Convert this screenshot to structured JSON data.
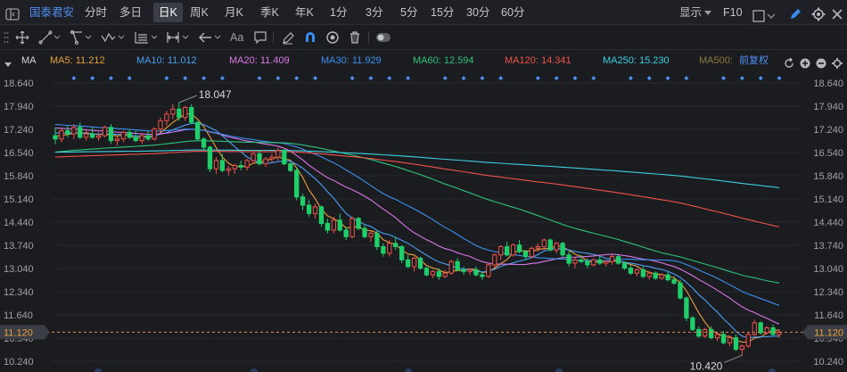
{
  "header": {
    "stock_name": "国泰君安",
    "periods": [
      "分时",
      "多日",
      "日K",
      "周K",
      "月K",
      "季K",
      "年K",
      "1分",
      "3分",
      "5分",
      "15分",
      "30分",
      "60分"
    ],
    "active_period": "日K",
    "display_label": "显示",
    "f10_label": "F10"
  },
  "toolbar": {
    "text_tool_label": "Aa"
  },
  "legend": {
    "indicator": "MA",
    "items": [
      {
        "label": "MA5: 11.212",
        "color": "#e9a13c"
      },
      {
        "label": "MA10: 11.012",
        "color": "#4a9ff5"
      },
      {
        "label": "MA20: 11.409",
        "color": "#d977e6"
      },
      {
        "label": "MA30: 11.929",
        "color": "#3a8ff0"
      },
      {
        "label": "MA60: 12.594",
        "color": "#2fc27a"
      },
      {
        "label": "MA120: 14.341",
        "color": "#f0524a"
      },
      {
        "label": "MA250: 15.230",
        "color": "#3ccfe0"
      },
      {
        "label": "MA500:",
        "color": "#8d7a3e"
      }
    ],
    "adjust_label": "前复权"
  },
  "chart_data": {
    "type": "candlestick",
    "ylim": [
      10.24,
      18.64
    ],
    "y_ticks": [
      "18.640",
      "17.940",
      "17.240",
      "16.540",
      "15.840",
      "15.140",
      "14.440",
      "13.740",
      "13.040",
      "12.340",
      "11.640",
      "10.940",
      "10.240"
    ],
    "current_price": "11.120",
    "max_label": "18.047",
    "min_label": "10.420",
    "colors": {
      "up": "#f0524a",
      "down": "#1fcf6a"
    },
    "ohlc": [
      [
        17.05,
        17.3,
        16.8,
        16.95
      ],
      [
        16.95,
        17.25,
        16.85,
        17.2
      ],
      [
        17.2,
        17.35,
        17.0,
        17.1
      ],
      [
        17.1,
        17.4,
        16.95,
        17.3
      ],
      [
        17.3,
        17.45,
        16.95,
        17.0
      ],
      [
        17.0,
        17.2,
        16.9,
        17.1
      ],
      [
        17.1,
        17.3,
        16.95,
        17.0
      ],
      [
        17.0,
        17.15,
        16.9,
        17.05
      ],
      [
        17.05,
        17.35,
        17.0,
        17.3
      ],
      [
        17.3,
        17.4,
        16.8,
        16.9
      ],
      [
        16.9,
        17.05,
        16.75,
        16.95
      ],
      [
        16.95,
        17.2,
        16.85,
        17.15
      ],
      [
        17.15,
        17.25,
        16.95,
        17.0
      ],
      [
        17.0,
        17.2,
        16.85,
        16.9
      ],
      [
        16.9,
        17.1,
        16.8,
        17.05
      ],
      [
        17.05,
        17.2,
        16.9,
        16.95
      ],
      [
        16.95,
        17.3,
        16.9,
        17.25
      ],
      [
        17.25,
        17.6,
        17.15,
        17.5
      ],
      [
        17.5,
        17.8,
        17.35,
        17.7
      ],
      [
        17.7,
        18.0,
        17.55,
        17.85
      ],
      [
        17.85,
        18.047,
        17.5,
        17.6
      ],
      [
        17.6,
        17.95,
        17.5,
        17.9
      ],
      [
        17.9,
        18.0,
        17.4,
        17.45
      ],
      [
        17.45,
        17.5,
        16.9,
        16.95
      ],
      [
        16.95,
        17.0,
        16.6,
        16.7
      ],
      [
        16.7,
        16.75,
        15.95,
        16.05
      ],
      [
        16.05,
        16.4,
        15.9,
        16.3
      ],
      [
        16.3,
        16.5,
        15.95,
        16.0
      ],
      [
        16.0,
        16.15,
        15.85,
        16.05
      ],
      [
        16.05,
        16.2,
        15.9,
        16.15
      ],
      [
        16.15,
        16.3,
        16.0,
        16.1
      ],
      [
        16.1,
        16.35,
        16.0,
        16.3
      ],
      [
        16.3,
        16.55,
        16.2,
        16.5
      ],
      [
        16.5,
        16.6,
        16.15,
        16.2
      ],
      [
        16.2,
        16.4,
        16.1,
        16.35
      ],
      [
        16.35,
        16.5,
        16.25,
        16.4
      ],
      [
        16.4,
        16.7,
        16.3,
        16.6
      ],
      [
        16.6,
        16.65,
        16.15,
        16.2
      ],
      [
        16.2,
        16.25,
        15.95,
        16.0
      ],
      [
        16.0,
        16.1,
        15.1,
        15.2
      ],
      [
        15.2,
        15.3,
        14.8,
        14.95
      ],
      [
        14.95,
        15.1,
        14.6,
        14.7
      ],
      [
        14.7,
        15.0,
        14.55,
        14.9
      ],
      [
        14.9,
        14.95,
        14.3,
        14.4
      ],
      [
        14.4,
        14.55,
        14.1,
        14.2
      ],
      [
        14.2,
        14.6,
        14.1,
        14.5
      ],
      [
        14.5,
        14.7,
        14.15,
        14.2
      ],
      [
        14.2,
        14.3,
        13.9,
        14.0
      ],
      [
        14.0,
        14.6,
        13.95,
        14.55
      ],
      [
        14.55,
        14.6,
        14.2,
        14.25
      ],
      [
        14.25,
        14.35,
        13.95,
        14.0
      ],
      [
        14.0,
        14.2,
        13.85,
        14.1
      ],
      [
        14.1,
        14.2,
        13.6,
        13.7
      ],
      [
        13.7,
        13.8,
        13.4,
        13.5
      ],
      [
        13.5,
        13.9,
        13.4,
        13.8
      ],
      [
        13.8,
        14.0,
        13.6,
        13.7
      ],
      [
        13.7,
        13.75,
        13.2,
        13.3
      ],
      [
        13.3,
        13.45,
        13.05,
        13.1
      ],
      [
        13.1,
        13.4,
        12.95,
        13.35
      ],
      [
        13.35,
        13.4,
        13.0,
        13.05
      ],
      [
        13.05,
        13.1,
        12.8,
        12.85
      ],
      [
        12.85,
        13.0,
        12.75,
        12.95
      ],
      [
        12.95,
        13.05,
        12.7,
        12.8
      ],
      [
        12.8,
        13.0,
        12.75,
        12.9
      ],
      [
        12.9,
        13.3,
        12.85,
        13.25
      ],
      [
        13.25,
        13.35,
        12.95,
        13.0
      ],
      [
        13.0,
        13.1,
        12.85,
        12.95
      ],
      [
        12.95,
        13.05,
        12.85,
        13.0
      ],
      [
        13.0,
        13.1,
        12.8,
        12.85
      ],
      [
        12.85,
        12.95,
        12.7,
        12.8
      ],
      [
        12.8,
        13.2,
        12.75,
        13.15
      ],
      [
        13.15,
        13.5,
        13.05,
        13.45
      ],
      [
        13.45,
        13.75,
        13.3,
        13.7
      ],
      [
        13.7,
        13.85,
        13.4,
        13.45
      ],
      [
        13.45,
        13.8,
        13.4,
        13.75
      ],
      [
        13.75,
        13.9,
        13.5,
        13.55
      ],
      [
        13.55,
        13.6,
        13.3,
        13.4
      ],
      [
        13.4,
        13.7,
        13.35,
        13.65
      ],
      [
        13.65,
        13.8,
        13.55,
        13.7
      ],
      [
        13.7,
        13.95,
        13.6,
        13.9
      ],
      [
        13.9,
        13.95,
        13.55,
        13.6
      ],
      [
        13.6,
        13.85,
        13.5,
        13.8
      ],
      [
        13.8,
        13.85,
        13.35,
        13.45
      ],
      [
        13.45,
        13.55,
        13.1,
        13.2
      ],
      [
        13.2,
        13.4,
        13.05,
        13.3
      ],
      [
        13.3,
        13.45,
        13.2,
        13.25
      ],
      [
        13.25,
        13.35,
        13.05,
        13.15
      ],
      [
        13.15,
        13.35,
        13.1,
        13.3
      ],
      [
        13.3,
        13.4,
        13.15,
        13.2
      ],
      [
        13.2,
        13.3,
        13.1,
        13.25
      ],
      [
        13.25,
        13.45,
        13.15,
        13.4
      ],
      [
        13.4,
        13.45,
        13.15,
        13.2
      ],
      [
        13.2,
        13.25,
        13.0,
        13.05
      ],
      [
        13.05,
        13.15,
        12.85,
        12.9
      ],
      [
        12.9,
        13.05,
        12.8,
        13.0
      ],
      [
        13.0,
        13.1,
        12.75,
        12.8
      ],
      [
        12.8,
        12.95,
        12.7,
        12.9
      ],
      [
        12.9,
        12.95,
        12.7,
        12.75
      ],
      [
        12.75,
        12.9,
        12.7,
        12.85
      ],
      [
        12.85,
        12.95,
        12.65,
        12.7
      ],
      [
        12.7,
        12.8,
        12.55,
        12.6
      ],
      [
        12.6,
        12.7,
        12.1,
        12.15
      ],
      [
        12.15,
        12.2,
        11.45,
        11.55
      ],
      [
        11.55,
        11.6,
        11.15,
        11.2
      ],
      [
        11.2,
        11.3,
        10.95,
        11.0
      ],
      [
        11.0,
        11.25,
        10.95,
        11.2
      ],
      [
        11.2,
        11.3,
        10.9,
        10.95
      ],
      [
        10.95,
        11.1,
        10.85,
        11.05
      ],
      [
        11.05,
        11.15,
        10.75,
        10.8
      ],
      [
        10.8,
        11.0,
        10.7,
        10.95
      ],
      [
        10.95,
        11.05,
        10.55,
        10.6
      ],
      [
        10.6,
        10.75,
        10.42,
        10.7
      ],
      [
        10.7,
        11.1,
        10.65,
        11.05
      ],
      [
        11.05,
        11.5,
        11.0,
        11.4
      ],
      [
        11.4,
        11.45,
        11.05,
        11.1
      ],
      [
        11.1,
        11.3,
        11.05,
        11.25
      ],
      [
        11.25,
        11.35,
        11.0,
        11.05
      ],
      [
        11.05,
        11.2,
        10.95,
        11.12
      ]
    ],
    "ma": [
      {
        "name": "MA5",
        "color": "#e9a13c"
      },
      {
        "name": "MA10",
        "color": "#4a9ff5"
      },
      {
        "name": "MA20",
        "color": "#d977e6"
      },
      {
        "name": "MA30",
        "color": "#3a8ff0"
      },
      {
        "name": "MA60",
        "color": "#2fc27a"
      },
      {
        "name": "MA120",
        "color": "#f0524a"
      },
      {
        "name": "MA250",
        "color": "#3ccfe0"
      }
    ]
  }
}
